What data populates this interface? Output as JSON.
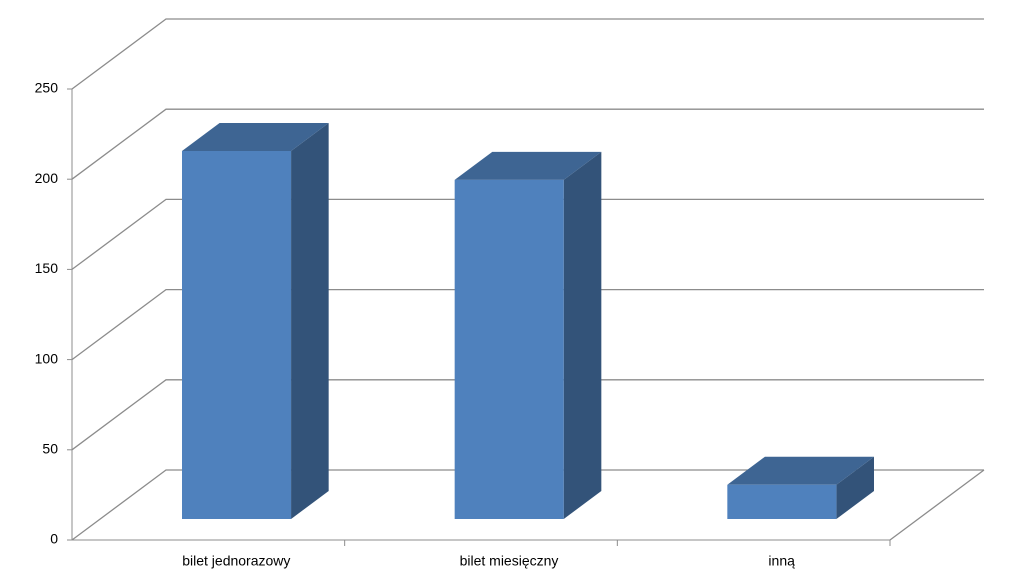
{
  "chart_data": {
    "type": "bar",
    "categories": [
      "bilet jednorazowy",
      "bilet miesięczny",
      "inną"
    ],
    "values": [
      204,
      188,
      19
    ],
    "color": "#4f81bd",
    "ylim": [
      0,
      250
    ],
    "yticks": [
      0,
      50,
      100,
      150,
      200,
      250
    ],
    "grid": true
  }
}
